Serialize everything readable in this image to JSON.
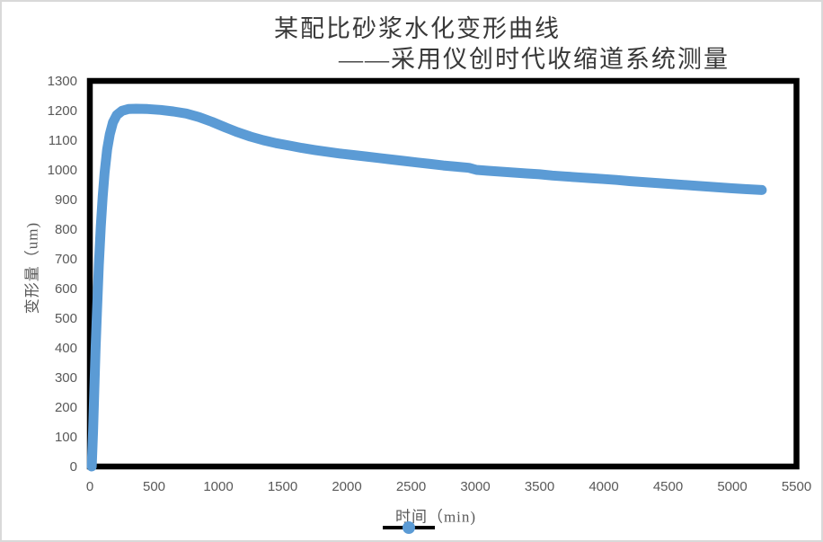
{
  "title": {
    "line1": "某配比砂浆水化变形曲线",
    "line2": "——采用仪创时代收缩道系统测量"
  },
  "colors": {
    "curve": "#5B9BD5",
    "plot_border": "#000000",
    "tick_label": "#595959",
    "axis_title": "#595959",
    "title_text": "#383838",
    "legend_line": "#000000",
    "legend_marker": "#5B9BD5",
    "outer_border": "#d9d9d9",
    "background": "#ffffff"
  },
  "chart_data": {
    "type": "line",
    "title": "某配比砂浆水化变形曲线 ——采用仪创时代收缩道系统测量",
    "xlabel": "时间（min)",
    "ylabel": "变形量（um)",
    "xlim": [
      0,
      5500
    ],
    "ylim": [
      0,
      1300
    ],
    "x_ticks": [
      0,
      500,
      1000,
      1500,
      2000,
      2500,
      3000,
      3500,
      4000,
      4500,
      5000,
      5500
    ],
    "y_ticks": [
      0,
      100,
      200,
      300,
      400,
      500,
      600,
      700,
      800,
      900,
      1000,
      1100,
      1200,
      1300
    ],
    "grid": false,
    "legend_position": "bottom-center",
    "series": [
      {
        "name": "",
        "marker": "circle",
        "color": "#5B9BD5",
        "points": [
          [
            15,
            0
          ],
          [
            25,
            120
          ],
          [
            35,
            260
          ],
          [
            45,
            400
          ],
          [
            55,
            520
          ],
          [
            70,
            680
          ],
          [
            85,
            810
          ],
          [
            100,
            910
          ],
          [
            115,
            990
          ],
          [
            135,
            1070
          ],
          [
            155,
            1120
          ],
          [
            180,
            1160
          ],
          [
            210,
            1185
          ],
          [
            250,
            1199
          ],
          [
            300,
            1205
          ],
          [
            360,
            1206
          ],
          [
            450,
            1205
          ],
          [
            550,
            1202
          ],
          [
            650,
            1197
          ],
          [
            750,
            1190
          ],
          [
            850,
            1178
          ],
          [
            950,
            1162
          ],
          [
            1050,
            1144
          ],
          [
            1150,
            1127
          ],
          [
            1250,
            1112
          ],
          [
            1350,
            1100
          ],
          [
            1450,
            1090
          ],
          [
            1550,
            1082
          ],
          [
            1650,
            1074
          ],
          [
            1750,
            1067
          ],
          [
            1850,
            1061
          ],
          [
            1950,
            1055
          ],
          [
            2050,
            1050
          ],
          [
            2150,
            1045
          ],
          [
            2250,
            1040
          ],
          [
            2350,
            1035
          ],
          [
            2450,
            1030
          ],
          [
            2550,
            1025
          ],
          [
            2650,
            1020
          ],
          [
            2750,
            1015
          ],
          [
            2850,
            1011
          ],
          [
            2950,
            1007
          ],
          [
            3010,
            1000
          ],
          [
            3100,
            997
          ],
          [
            3200,
            994
          ],
          [
            3300,
            991
          ],
          [
            3400,
            988
          ],
          [
            3500,
            985
          ],
          [
            3600,
            981
          ],
          [
            3700,
            978
          ],
          [
            3800,
            975
          ],
          [
            3900,
            972
          ],
          [
            4000,
            969
          ],
          [
            4100,
            966
          ],
          [
            4200,
            962
          ],
          [
            4300,
            959
          ],
          [
            4400,
            956
          ],
          [
            4500,
            953
          ],
          [
            4600,
            950
          ],
          [
            4700,
            947
          ],
          [
            4800,
            944
          ],
          [
            4900,
            941
          ],
          [
            5000,
            938
          ],
          [
            5100,
            935
          ],
          [
            5230,
            932
          ]
        ]
      }
    ]
  }
}
